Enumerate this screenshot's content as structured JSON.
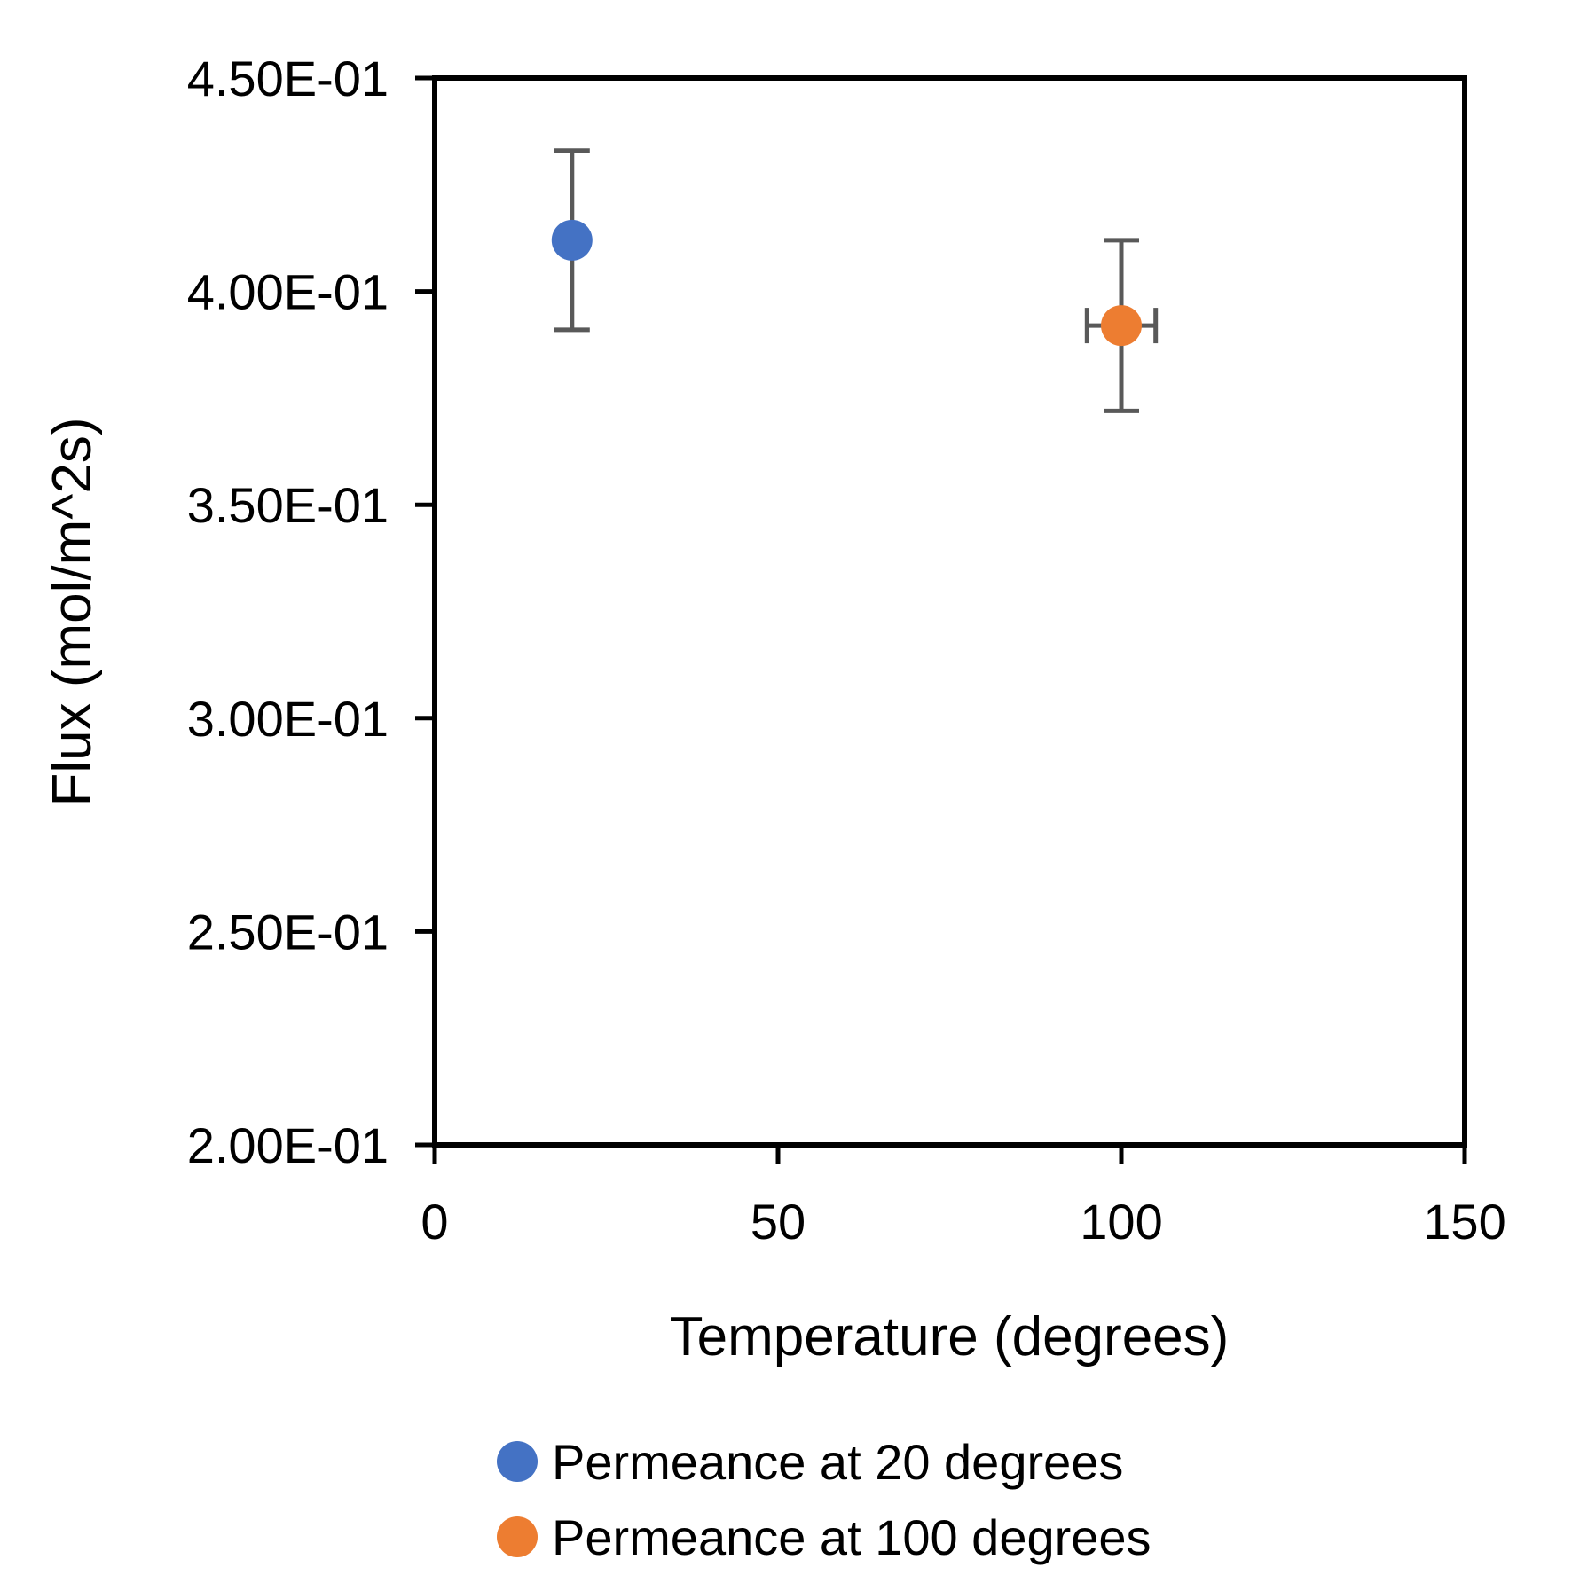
{
  "chart_data": {
    "type": "scatter",
    "title": "",
    "xlabel": "Temperature (degrees)",
    "ylabel": "Flux (mol/m^2s)",
    "xlim": [
      0,
      150
    ],
    "ylim": [
      0.2,
      0.45
    ],
    "x_ticks": [
      0,
      50,
      100,
      150
    ],
    "y_ticks": [
      0.2,
      0.25,
      0.3,
      0.35,
      0.4,
      0.45
    ],
    "x_tick_labels": [
      "0",
      "50",
      "100",
      "150"
    ],
    "y_tick_labels": [
      "2.00E-01",
      "2.50E-01",
      "3.00E-01",
      "3.50E-01",
      "4.00E-01",
      "4.50E-01"
    ],
    "grid": false,
    "legend_position": "bottom",
    "series": [
      {
        "name": "Permeance at 20 degrees",
        "color": "#4472C4",
        "points": [
          {
            "x": 20,
            "y": 0.412,
            "y_err": 0.021,
            "x_err": 0
          }
        ]
      },
      {
        "name": "Permeance at 100 degrees",
        "color": "#ED7D31",
        "points": [
          {
            "x": 100,
            "y": 0.392,
            "y_err": 0.02,
            "x_err": 5
          }
        ]
      }
    ],
    "errorbar_color": "#595959"
  }
}
